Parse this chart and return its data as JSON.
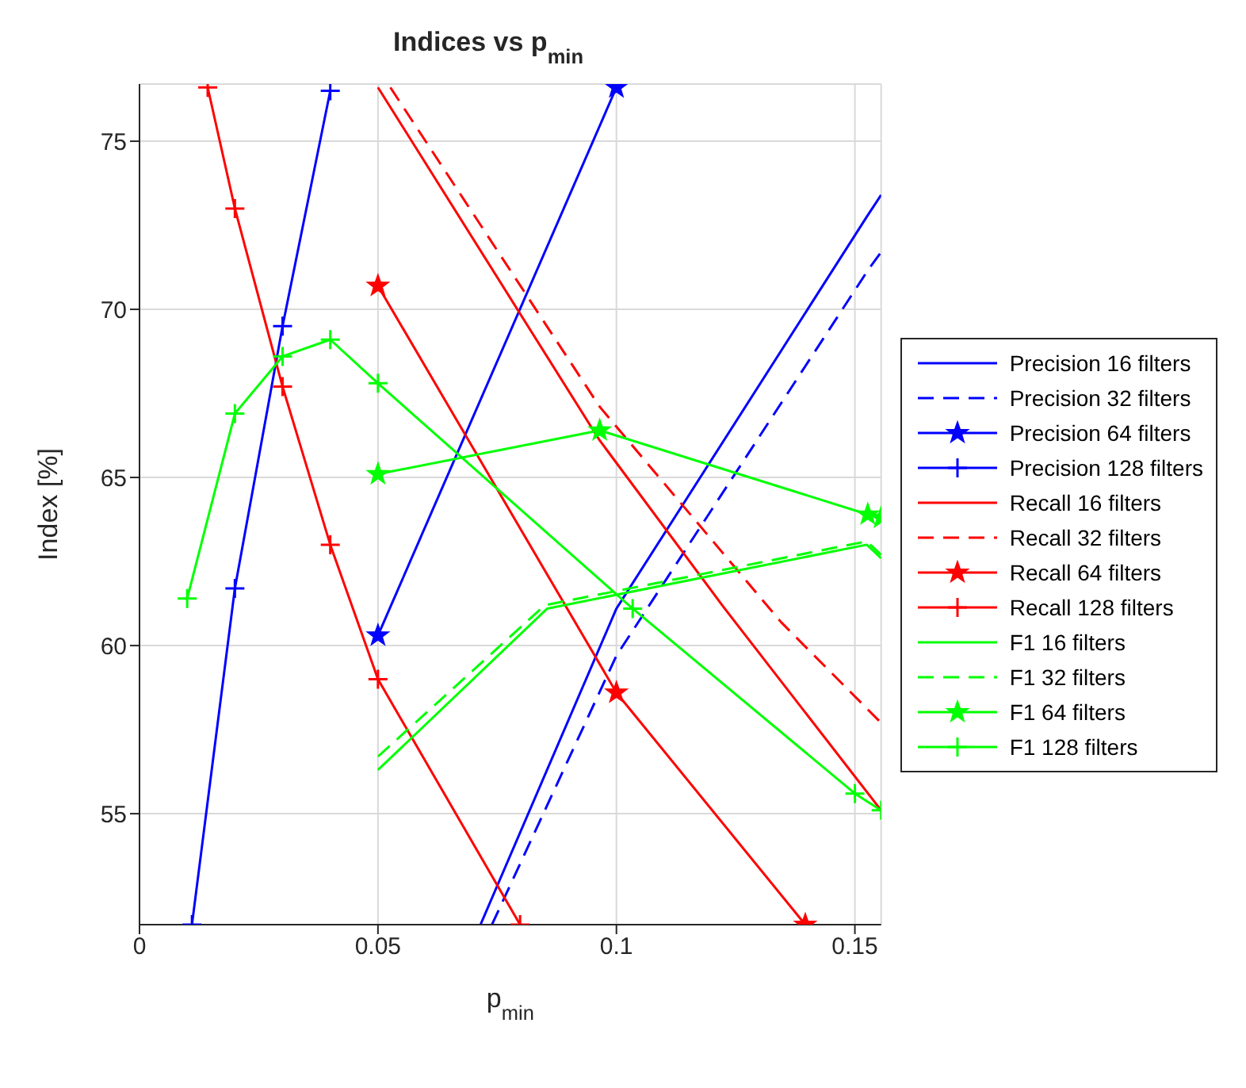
{
  "chart_data": {
    "type": "line",
    "title": "Indices vs p$_{min}$",
    "xlabel": "p$_{min}$",
    "ylabel": "Index [%]",
    "xlim": [
      0,
      0.1555
    ],
    "xticks": [
      0,
      0.05,
      0.1,
      0.15
    ],
    "ylim": [
      51.7,
      76.7
    ],
    "yticks": [
      55,
      60,
      65,
      70,
      75
    ],
    "grid": true,
    "legend": "right",
    "series": [
      {
        "name": "Precision 16 filters",
        "color": "#0000ff",
        "line_style": "solid",
        "marker": "none",
        "x": [
          0.0715,
          0.1,
          0.1527,
          0.1555
        ],
        "values": [
          51.7,
          61.1,
          72.8,
          73.4
        ]
      },
      {
        "name": "Precision 32 filters",
        "color": "#0000ff",
        "line_style": "dashed",
        "marker": "none",
        "x": [
          0.0739,
          0.1,
          0.1529,
          0.1555
        ],
        "values": [
          51.7,
          59.7,
          71.2,
          71.7
        ]
      },
      {
        "name": "Precision 64 filters",
        "color": "#0000ff",
        "line_style": "solid",
        "marker": "star",
        "x": [
          0.05,
          0.1
        ],
        "values": [
          60.3,
          76.6
        ]
      },
      {
        "name": "Precision 128 filters",
        "color": "#0000ff",
        "line_style": "solid",
        "marker": "cross",
        "x": [
          0.011,
          0.02,
          0.03,
          0.04
        ],
        "values": [
          51.7,
          61.7,
          69.5,
          76.5
        ]
      },
      {
        "name": "Recall 16 filters",
        "color": "#ff0000",
        "line_style": "solid",
        "marker": "none",
        "x": [
          0.05,
          0.0965,
          0.1227,
          0.1555
        ],
        "values": [
          76.6,
          66.1,
          61.1,
          55.1
        ]
      },
      {
        "name": "Recall 32 filters",
        "color": "#ff0000",
        "line_style": "dashed",
        "marker": "none",
        "x": [
          0.0526,
          0.0965,
          0.1345,
          0.1555
        ],
        "values": [
          76.6,
          67.1,
          60.7,
          57.7
        ]
      },
      {
        "name": "Recall 64 filters",
        "color": "#ff0000",
        "line_style": "solid",
        "marker": "star",
        "x": [
          0.05,
          0.1,
          0.1396
        ],
        "values": [
          70.7,
          58.6,
          51.7
        ]
      },
      {
        "name": "Recall 128 filters",
        "color": "#ff0000",
        "line_style": "solid",
        "marker": "cross",
        "x": [
          0.0143,
          0.02,
          0.03,
          0.04,
          0.05,
          0.0798
        ],
        "values": [
          76.6,
          73.0,
          67.7,
          63.0,
          59.0,
          51.7
        ]
      },
      {
        "name": "F1 16 filters",
        "color": "#00ff00",
        "line_style": "solid",
        "marker": "none",
        "x": [
          0.05,
          0.0855,
          0.1525,
          0.1555
        ],
        "values": [
          56.3,
          61.1,
          63.0,
          62.6
        ]
      },
      {
        "name": "F1 32 filters",
        "color": "#00ff00",
        "line_style": "dashed",
        "marker": "none",
        "x": [
          0.05,
          0.085,
          0.1525,
          0.1555
        ],
        "values": [
          56.7,
          61.2,
          63.1,
          62.7
        ]
      },
      {
        "name": "F1 64 filters",
        "color": "#00ff00",
        "line_style": "solid",
        "marker": "star",
        "x": [
          0.05,
          0.0965,
          0.1527,
          0.1555
        ],
        "values": [
          65.1,
          66.4,
          63.9,
          63.8
        ]
      },
      {
        "name": "F1 128 filters",
        "color": "#00ff00",
        "line_style": "solid",
        "marker": "cross",
        "x": [
          0.01,
          0.02,
          0.03,
          0.04,
          0.05,
          0.1034,
          0.15,
          0.1555
        ],
        "values": [
          61.4,
          66.9,
          68.6,
          69.1,
          67.8,
          61.1,
          55.6,
          55.1
        ]
      }
    ]
  }
}
